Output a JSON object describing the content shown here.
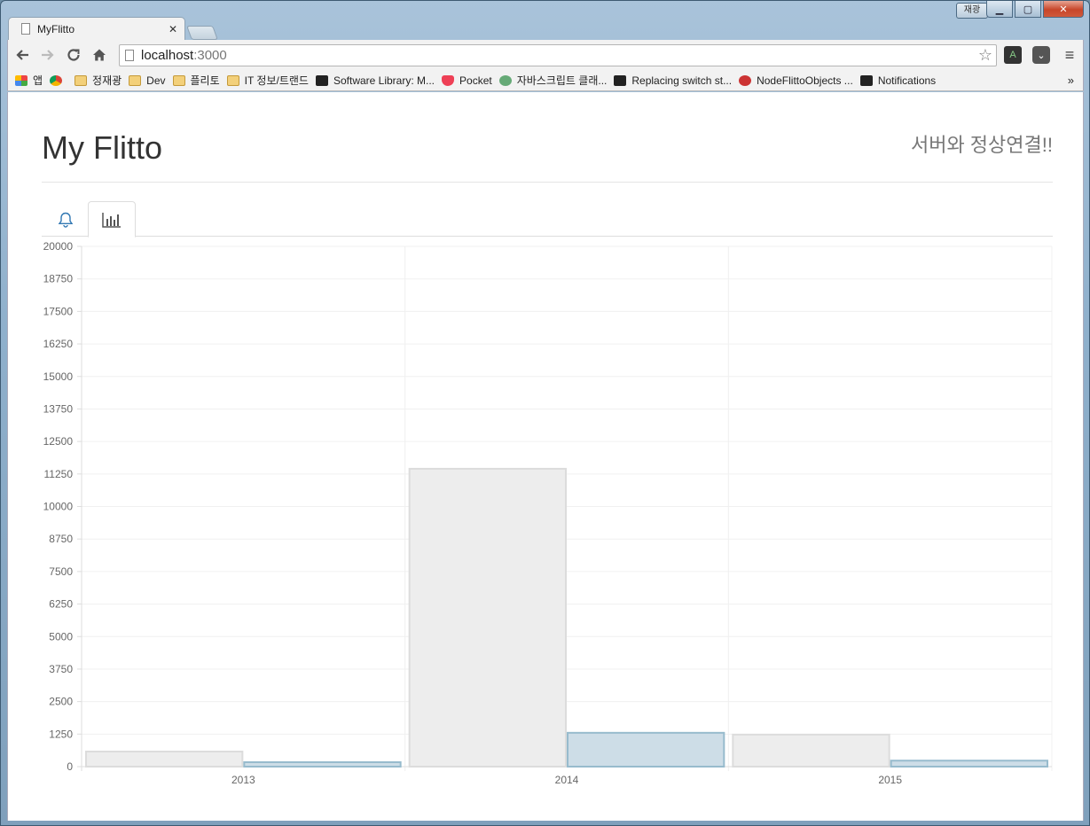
{
  "browser": {
    "profile_label": "재광",
    "tab_title": "MyFlitto",
    "url_host": "localhost",
    "url_port": ":3000",
    "bookmarks": [
      {
        "label": "앱",
        "icon": "apps-grid-icon"
      },
      {
        "label": "",
        "icon": "chrome-icon"
      },
      {
        "label": "정재광",
        "icon": "folder-icon"
      },
      {
        "label": "Dev",
        "icon": "folder-icon"
      },
      {
        "label": "플리토",
        "icon": "folder-icon"
      },
      {
        "label": "IT 정보/트랜드",
        "icon": "folder-icon"
      },
      {
        "label": "Software Library: M...",
        "icon": "archive-icon"
      },
      {
        "label": "Pocket",
        "icon": "pocket-icon"
      },
      {
        "label": "자바스크립트 클래...",
        "icon": "avatar-icon"
      },
      {
        "label": "Replacing switch st...",
        "icon": "tumblr-icon"
      },
      {
        "label": "NodeFlittoObjects ...",
        "icon": "paw-icon"
      },
      {
        "label": "Notifications",
        "icon": "ih-icon"
      }
    ],
    "bookmarks_more": "»"
  },
  "page": {
    "title": "My Flitto",
    "connection_status": "서버와 정상연결!!",
    "tabs": [
      {
        "icon": "bell-icon",
        "active": false
      },
      {
        "icon": "bar-chart-icon",
        "active": true
      }
    ]
  },
  "colors": {
    "series_a_fill": "#ededed",
    "series_a_stroke": "#dcdcdc",
    "series_b_fill": "#cddde7",
    "series_b_stroke": "#97bbcd",
    "grid": "#f0f0f0",
    "axis_text": "#666666"
  },
  "chart_data": {
    "type": "bar",
    "categories": [
      "2013",
      "2014",
      "2015"
    ],
    "series": [
      {
        "values": [
          580,
          11450,
          1230
        ]
      },
      {
        "values": [
          170,
          1300,
          230
        ]
      }
    ],
    "ylim": [
      0,
      20000
    ],
    "yticks": [
      0,
      1250,
      2500,
      3750,
      5000,
      6250,
      7500,
      8750,
      10000,
      11250,
      12500,
      13750,
      15000,
      16250,
      17500,
      18750,
      20000
    ],
    "grid": true
  }
}
